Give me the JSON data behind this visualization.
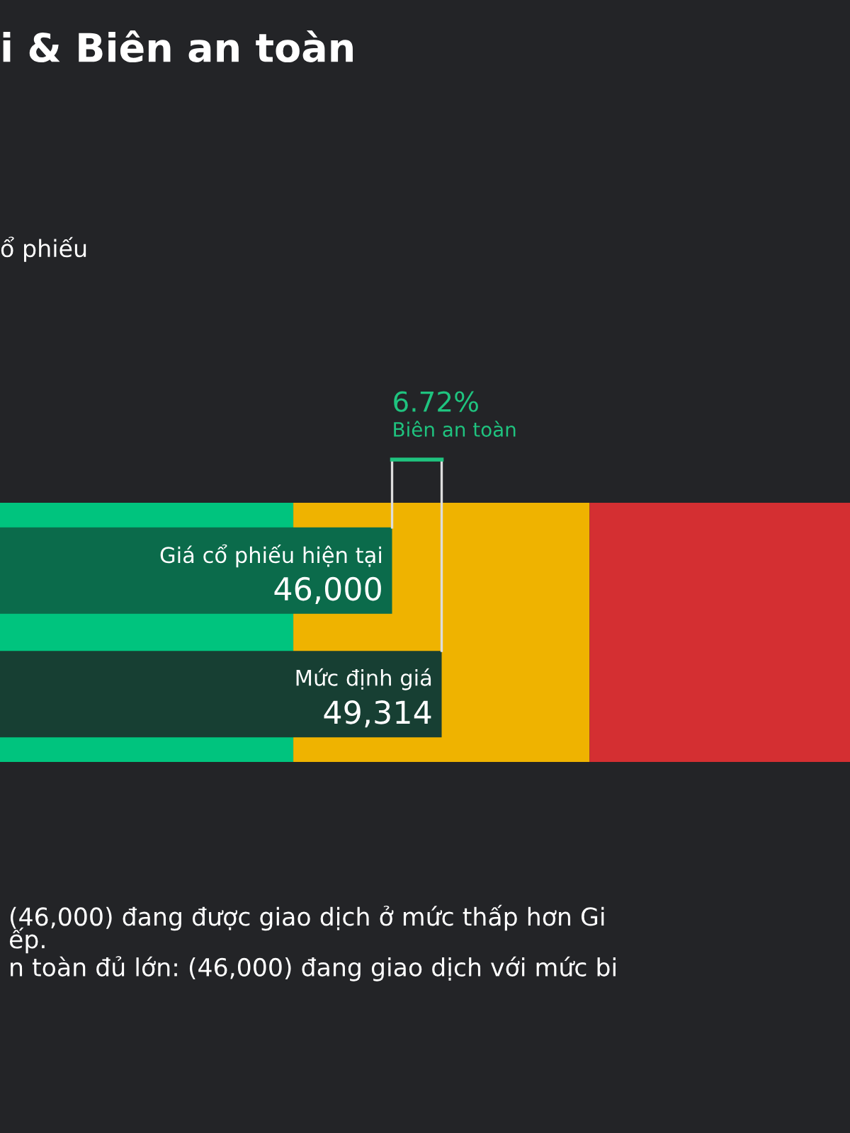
{
  "chart_data": {
    "type": "bar",
    "orientation": "horizontal",
    "title": "i & Biên an toàn",
    "subtitle": "ổ phiếu",
    "categories": [
      "Giá cổ phiếu hiện tại",
      "Mức định giá"
    ],
    "values": [
      46000,
      49314
    ],
    "colors": [
      "#0b6b4b",
      "#173f33"
    ],
    "value_labels": [
      "46,000",
      "49,314"
    ],
    "xlim": [
      19800,
      76600
    ],
    "bands": [
      {
        "axis": "x",
        "from": 19800,
        "to": 39400,
        "color": "#00c47e"
      },
      {
        "axis": "x",
        "from": 39400,
        "to": 59200,
        "color": "#efb300"
      },
      {
        "axis": "x",
        "from": 59200,
        "to": 76600,
        "color": "#d42f32"
      }
    ],
    "annotations": [
      "6.72%",
      "Biên an toàn",
      "(46,000) đang được giao dịch ở mức thấp hơn Gi",
      "ếp.",
      "n toàn đủ lớn: (46,000) đang giao dịch với mức bi"
    ],
    "legend": false
  }
}
